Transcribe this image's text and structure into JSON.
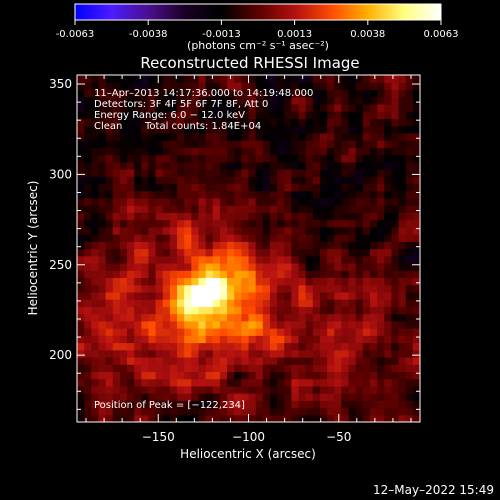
{
  "colorbar": {
    "tick_labels": [
      "-0.0063",
      "-0.0038",
      "-0.0013",
      "0.0013",
      "0.0038",
      "0.0063"
    ],
    "range": [
      -0.0063,
      0.0063
    ],
    "unit_label": "(photons cm⁻² s⁻¹ asec⁻²)",
    "colors": [
      "#0000ff",
      "#4b1cff",
      "#4b0f8f",
      "#1a0025",
      "#000000",
      "#5a0000",
      "#b21010",
      "#ff4a00",
      "#ffb000",
      "#ffff80",
      "#ffffff"
    ]
  },
  "chart_data": {
    "type": "heatmap",
    "title": "Reconstructed RHESSI Image",
    "xlabel": "Heliocentric X (arcsec)",
    "ylabel": "Heliocentric Y (arcsec)",
    "xlim": [
      -195,
      -5
    ],
    "ylim": [
      163,
      355
    ],
    "x_ticks": [
      -150,
      -100,
      -50
    ],
    "y_ticks": [
      200,
      250,
      300,
      350
    ],
    "x_tick_labels": [
      "−150",
      "−100",
      "−50"
    ],
    "y_tick_labels": [
      "200",
      "250",
      "300",
      "350"
    ],
    "peak_position": [
      -122,
      234
    ],
    "peak_value": 0.0063,
    "background_value": -0.0008,
    "noise_amplitude": 0.0016,
    "annotations": {
      "time_range": "11–Apr–2013 14:17:36.000 to 14:19:48.000",
      "detectors": "Detectors: 3F 4F 5F 6F 7F 8F, Att 0",
      "energy": "Energy Range: 6.0 − 12.0 keV",
      "clean": "Clean",
      "total_counts": "Total counts: 1.84E+04",
      "peak": "Position of Peak = [−122,234]"
    }
  },
  "footer": {
    "timestamp": "12–May–2022 15:49"
  }
}
